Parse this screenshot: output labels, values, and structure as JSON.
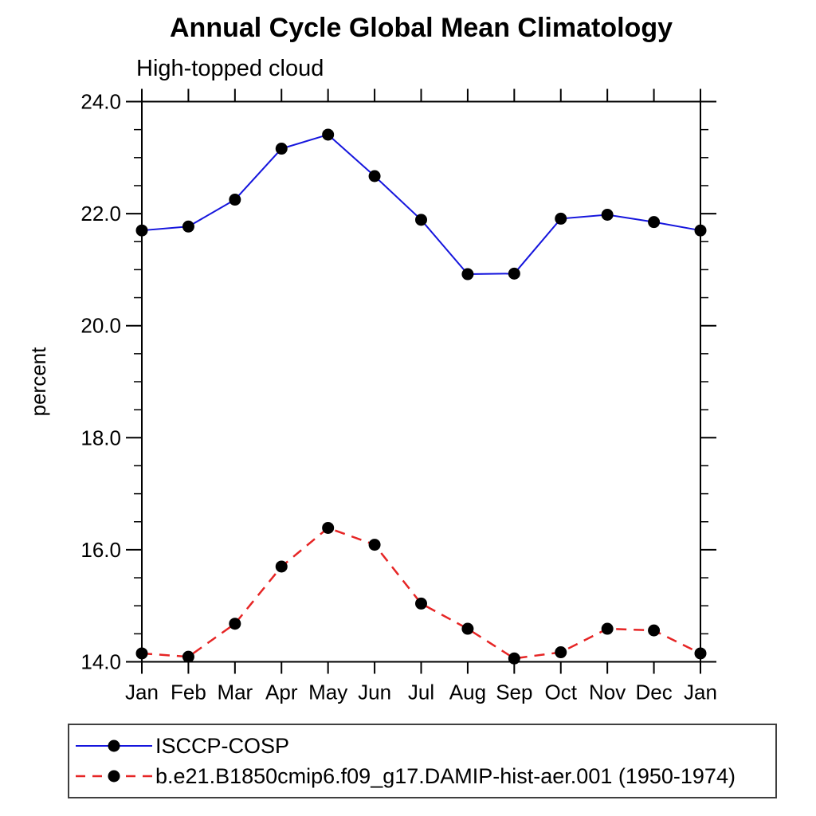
{
  "chart_data": {
    "type": "line",
    "title": "Annual Cycle Global Mean Climatology",
    "subtitle": "High-topped cloud",
    "ylabel": "percent",
    "xlabel": "",
    "categories": [
      "Jan",
      "Feb",
      "Mar",
      "Apr",
      "May",
      "Jun",
      "Jul",
      "Aug",
      "Sep",
      "Oct",
      "Nov",
      "Dec",
      "Jan"
    ],
    "ylim": [
      14.0,
      24.0
    ],
    "ytick_values": [
      14.0,
      16.0,
      18.0,
      20.0,
      22.0,
      24.0
    ],
    "ytick_labels": [
      "14.0",
      "16.0",
      "18.0",
      "20.0",
      "22.0",
      "24.0"
    ],
    "minor_tick_step": 0.5,
    "grid": false,
    "legend_position": "bottom-left box",
    "series": [
      {
        "name": "ISCCP-COSP",
        "color": "#1515dd",
        "line_style": "solid",
        "marker": "filled-circle",
        "marker_color": "#000000",
        "values": [
          21.7,
          21.77,
          22.25,
          23.16,
          23.41,
          22.67,
          21.89,
          20.92,
          20.93,
          21.91,
          21.98,
          21.85,
          21.7
        ]
      },
      {
        "name": "b.e21.B1850cmip6.f09_g17.DAMIP-hist-aer.001 (1950-1974)",
        "color": "#e62525",
        "line_style": "dashed",
        "marker": "filled-circle",
        "marker_color": "#000000",
        "values": [
          14.15,
          14.09,
          14.68,
          15.7,
          16.39,
          16.09,
          15.04,
          14.59,
          14.06,
          14.17,
          14.59,
          14.56,
          14.15
        ]
      }
    ],
    "axis_color": "#000000",
    "legend_border_color": "#3f3f3f"
  }
}
